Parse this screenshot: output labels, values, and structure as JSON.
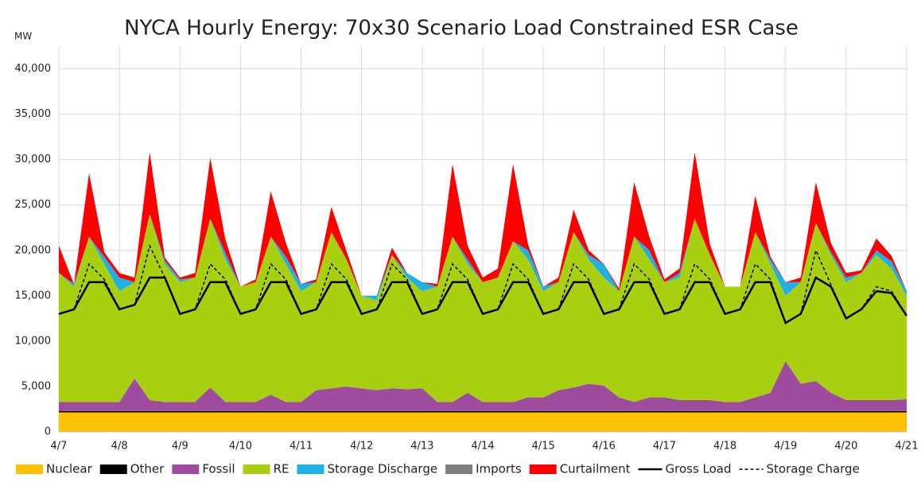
{
  "chart_data": {
    "type": "stacked_area",
    "title": "NYCA Hourly Energy: 70x30 Scenario Load Constrained ESR Case",
    "y_label": "MW",
    "categories": [
      "4/7",
      null,
      null,
      null,
      "4/8",
      null,
      null,
      null,
      "4/9",
      null,
      null,
      null,
      "4/10",
      null,
      null,
      null,
      "4/11",
      null,
      null,
      null,
      "4/12",
      null,
      null,
      null,
      "4/13",
      null,
      null,
      null,
      "4/14",
      null,
      null,
      null,
      "4/15",
      null,
      null,
      null,
      "4/16",
      null,
      null,
      null,
      "4/17",
      null,
      null,
      null,
      "4/18",
      null,
      null,
      null,
      "4/19",
      null,
      null,
      null,
      "4/20",
      null,
      null,
      null,
      "4/21"
    ],
    "ylim": [
      0,
      42500
    ],
    "yticks": [
      0,
      {
        "value": 5000,
        "label": "5,000"
      },
      {
        "value": 10000,
        "label": "10,000"
      },
      {
        "value": 15000,
        "label": "15,000"
      },
      {
        "value": 20000,
        "label": "20,000"
      },
      {
        "value": 25000,
        "label": "25,000"
      },
      {
        "value": 30000,
        "label": "30,000"
      },
      {
        "value": 35000,
        "label": "35,000"
      },
      {
        "value": 40000,
        "label": "40,000"
      }
    ],
    "grid": true,
    "series": [
      {
        "name": "Nuclear",
        "color": "#ffc000",
        "values": [
          2150,
          2150,
          2150,
          2150,
          2150,
          2150,
          2150,
          2150,
          2150,
          2150,
          2150,
          2150,
          2150,
          2150,
          2150,
          2150,
          2150,
          2150,
          2150,
          2150,
          2150,
          2150,
          2150,
          2150,
          2150,
          2150,
          2150,
          2150,
          2150,
          2150,
          2150,
          2150,
          2150,
          2150,
          2150,
          2150,
          2150,
          2150,
          2150,
          2150,
          2150,
          2150,
          2150,
          2150,
          2150,
          2150,
          2150,
          2150,
          2150,
          2150,
          2150,
          2150,
          2150,
          2150,
          2150,
          2150,
          2150
        ]
      },
      {
        "name": "Other",
        "color": "#000000",
        "values": [
          150,
          150,
          150,
          150,
          150,
          150,
          150,
          150,
          150,
          150,
          150,
          150,
          150,
          150,
          150,
          150,
          150,
          150,
          150,
          150,
          150,
          150,
          150,
          150,
          150,
          150,
          150,
          150,
          150,
          150,
          150,
          150,
          150,
          150,
          150,
          150,
          150,
          150,
          150,
          150,
          150,
          150,
          150,
          150,
          150,
          150,
          150,
          150,
          150,
          150,
          150,
          150,
          150,
          150,
          150,
          150,
          150
        ]
      },
      {
        "name": "Fossil",
        "color": "#9e4c9e",
        "values": [
          1000,
          1000,
          1000,
          1000,
          1000,
          3600,
          1200,
          1000,
          1000,
          1000,
          2600,
          1000,
          1000,
          1000,
          1800,
          1000,
          1000,
          2300,
          2500,
          2700,
          2500,
          2300,
          2500,
          2400,
          2500,
          1000,
          1000,
          2000,
          1000,
          1000,
          1000,
          1500,
          1500,
          2300,
          2600,
          3000,
          2800,
          1500,
          1000,
          1500,
          1500,
          1200,
          1200,
          1200,
          1000,
          1000,
          1500,
          2000,
          5500,
          3000,
          3300,
          2000,
          1200,
          1200,
          1200,
          1200,
          1300
        ]
      },
      {
        "name": "RE",
        "color": "#a8cf10",
        "values": [
          14200,
          12700,
          18200,
          15200,
          12200,
          10600,
          20500,
          15200,
          13200,
          13700,
          18600,
          15700,
          12700,
          13200,
          17400,
          15200,
          12200,
          11900,
          17200,
          14000,
          10200,
          9900,
          14700,
          12300,
          10700,
          12700,
          18200,
          14200,
          13200,
          13700,
          17700,
          15200,
          11700,
          11900,
          17100,
          13700,
          11900,
          11700,
          18200,
          15200,
          12700,
          13500,
          20000,
          16000,
          12700,
          12700,
          18200,
          14200,
          7200,
          11200,
          17400,
          15200,
          13000,
          14000,
          16000,
          14500,
          11400
        ]
      },
      {
        "name": "Storage Discharge",
        "color": "#1fb1e6",
        "values": [
          0,
          300,
          0,
          800,
          1500,
          0,
          0,
          400,
          300,
          0,
          0,
          700,
          0,
          0,
          0,
          800,
          800,
          0,
          0,
          0,
          0,
          500,
          0,
          500,
          1000,
          0,
          0,
          500,
          0,
          0,
          0,
          1000,
          500,
          0,
          0,
          500,
          1500,
          0,
          0,
          1000,
          0,
          500,
          0,
          0,
          0,
          0,
          0,
          500,
          1500,
          0,
          0,
          300,
          500,
          0,
          500,
          800,
          500
        ]
      },
      {
        "name": "Imports",
        "color": "#7f7f7f",
        "values": [
          0,
          0,
          0,
          0,
          0,
          0,
          0,
          0,
          0,
          0,
          0,
          0,
          0,
          0,
          0,
          0,
          0,
          0,
          0,
          0,
          0,
          0,
          0,
          0,
          0,
          0,
          0,
          0,
          0,
          0,
          0,
          0,
          0,
          0,
          0,
          0,
          0,
          0,
          0,
          0,
          0,
          0,
          0,
          0,
          0,
          0,
          0,
          0,
          0,
          0,
          0,
          0,
          0,
          0,
          0,
          0,
          0
        ]
      },
      {
        "name": "Curtailment",
        "color": "#ff0000",
        "values": [
          3000,
          0,
          7000,
          500,
          500,
          500,
          6800,
          300,
          200,
          500,
          6700,
          1500,
          0,
          300,
          5000,
          1500,
          0,
          300,
          2800,
          900,
          0,
          0,
          800,
          0,
          0,
          300,
          8000,
          1500,
          500,
          1000,
          8500,
          600,
          0,
          500,
          2500,
          500,
          0,
          300,
          6000,
          1500,
          300,
          500,
          7300,
          1200,
          0,
          0,
          4000,
          300,
          0,
          500,
          4500,
          1000,
          500,
          300,
          1300,
          600,
          0
        ]
      }
    ],
    "lines": [
      {
        "name": "Gross Load",
        "color": "#000000",
        "dashed": false,
        "values": [
          13000,
          13500,
          16500,
          16500,
          13500,
          14000,
          17000,
          17000,
          13000,
          13500,
          16500,
          16500,
          13000,
          13500,
          16500,
          16500,
          13000,
          13500,
          16500,
          16500,
          13000,
          13500,
          16500,
          16500,
          13000,
          13500,
          16500,
          16500,
          13000,
          13500,
          16500,
          16500,
          13000,
          13500,
          16500,
          16500,
          13000,
          13500,
          16500,
          16500,
          13000,
          13500,
          16500,
          16500,
          13000,
          13500,
          16500,
          16500,
          12000,
          13000,
          17000,
          16000,
          12500,
          13500,
          15500,
          15300,
          12800
        ]
      },
      {
        "name": "Storage Charge",
        "color": "#000000",
        "dashed": true,
        "values": [
          13000,
          13500,
          18500,
          16800,
          13500,
          14000,
          20500,
          17000,
          13000,
          13500,
          18500,
          16800,
          13000,
          13500,
          18500,
          16800,
          13000,
          13500,
          18500,
          16800,
          13000,
          13500,
          18500,
          16800,
          13000,
          13500,
          18500,
          16800,
          13000,
          13500,
          18500,
          16800,
          13000,
          13500,
          18500,
          16800,
          13000,
          13500,
          18500,
          16800,
          13000,
          13500,
          18500,
          16800,
          13000,
          13500,
          18500,
          16800,
          12000,
          13000,
          20000,
          16200,
          12500,
          13500,
          16000,
          15500,
          12800
        ]
      }
    ]
  }
}
